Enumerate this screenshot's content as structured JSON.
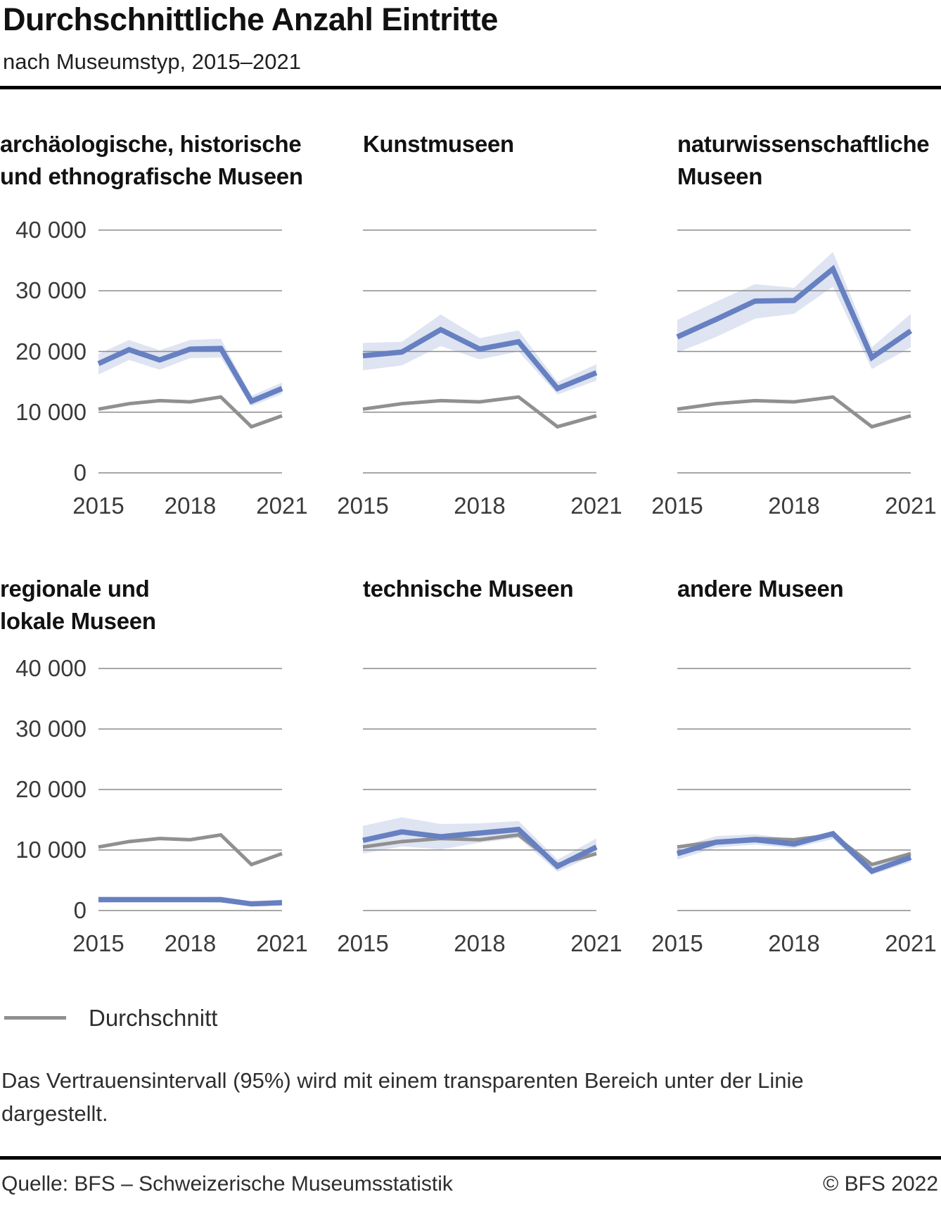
{
  "header": {
    "title": "Durchschnittliche Anzahl Eintritte",
    "subtitle": "nach Museumstyp, 2015–2021"
  },
  "chart_data": {
    "type": "line",
    "x": [
      2015,
      2016,
      2017,
      2018,
      2019,
      2020,
      2021
    ],
    "x_tick_labels": [
      "2015",
      "2018",
      "2021"
    ],
    "x_tick_indices": [
      0,
      3,
      6
    ],
    "y_tick_labels": [
      "40 000",
      "30 000",
      "20 000",
      "10 000",
      "0"
    ],
    "ylim": [
      0,
      40000
    ],
    "grid": true,
    "legend": {
      "label": "Durchschnitt"
    },
    "average_series": {
      "name": "Durchschnitt",
      "values": [
        10500,
        11400,
        11900,
        11700,
        12500,
        7600,
        9400
      ]
    },
    "panels": [
      {
        "title_lines": [
          "archäologische, historische",
          "und ethnografische Museen"
        ],
        "mean": [
          18000,
          20300,
          18600,
          20400,
          20500,
          11800,
          13900
        ],
        "ci_upper": [
          19600,
          21900,
          20200,
          21900,
          22100,
          12700,
          14900
        ],
        "ci_lower": [
          16200,
          18600,
          17000,
          18900,
          19000,
          11000,
          13000
        ]
      },
      {
        "title_lines": [
          "Kunstmuseen"
        ],
        "mean": [
          19300,
          19900,
          23600,
          20400,
          21600,
          13900,
          16500
        ],
        "ci_upper": [
          21400,
          21600,
          26100,
          22200,
          23500,
          15000,
          17900
        ],
        "ci_lower": [
          16900,
          17700,
          20900,
          18700,
          20000,
          12900,
          15200
        ]
      },
      {
        "title_lines": [
          "naturwissenschaftliche",
          "Museen"
        ],
        "mean": [
          22400,
          25300,
          28300,
          28400,
          33600,
          19000,
          23400
        ],
        "ci_upper": [
          25200,
          28200,
          31100,
          30500,
          36400,
          20700,
          26200
        ],
        "ci_lower": [
          19800,
          22400,
          25400,
          26200,
          30700,
          17100,
          20700
        ]
      },
      {
        "title_lines": [
          "regionale und",
          "lokale Museen"
        ],
        "mean": [
          1800,
          1800,
          1800,
          1800,
          1800,
          1100,
          1300
        ],
        "ci_upper": [
          2300,
          2250,
          2250,
          2250,
          2300,
          1500,
          1800
        ],
        "ci_lower": [
          1350,
          1400,
          1400,
          1400,
          1300,
          700,
          900
        ]
      },
      {
        "title_lines": [
          "technische Museen"
        ],
        "mean": [
          11600,
          13000,
          12200,
          12800,
          13400,
          7300,
          10500
        ],
        "ci_upper": [
          14000,
          15400,
          14300,
          14400,
          14800,
          8400,
          11900
        ],
        "ci_lower": [
          9400,
          10600,
          10100,
          11200,
          12000,
          6400,
          9300
        ]
      },
      {
        "title_lines": [
          "andere Museen"
        ],
        "mean": [
          9400,
          11300,
          11700,
          11000,
          12700,
          6500,
          8800
        ],
        "ci_upper": [
          10400,
          12300,
          12600,
          11800,
          13100,
          7200,
          9800
        ],
        "ci_lower": [
          8400,
          10400,
          10900,
          10300,
          11800,
          5900,
          8000
        ]
      }
    ],
    "colors": {
      "mean_line": "#6680c1",
      "ci_band": "#dfe4f2",
      "average_line": "#909090",
      "gridline": "#8c8c8c"
    }
  },
  "footnote": {
    "text": "Das Vertrauensintervall (95%) wird mit einem transparenten Bereich unter der Linie dargestellt."
  },
  "footer": {
    "source": "Quelle: BFS – Schweizerische Museumsstatistik",
    "copyright": "© BFS 2022"
  }
}
